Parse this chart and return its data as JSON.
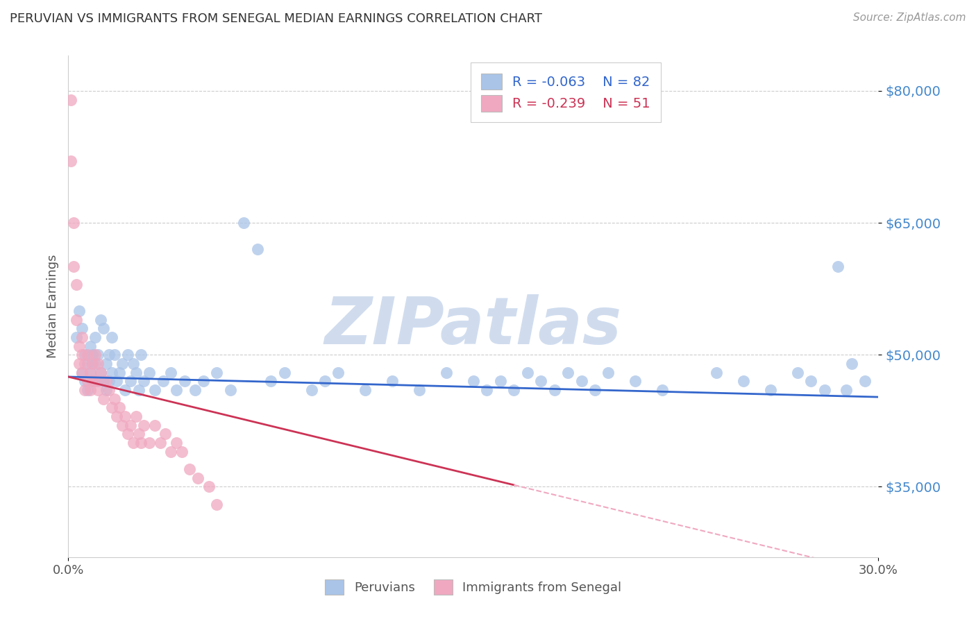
{
  "title": "PERUVIAN VS IMMIGRANTS FROM SENEGAL MEDIAN EARNINGS CORRELATION CHART",
  "source": "Source: ZipAtlas.com",
  "ylabel": "Median Earnings",
  "y_ticks": [
    35000,
    50000,
    65000,
    80000
  ],
  "y_tick_labels": [
    "$35,000",
    "$50,000",
    "$65,000",
    "$80,000"
  ],
  "xlim": [
    0.0,
    0.3
  ],
  "ylim": [
    27000,
    84000
  ],
  "legend_blue_r": "R = -0.063",
  "legend_blue_n": "N = 82",
  "legend_pink_r": "R = -0.239",
  "legend_pink_n": "N = 51",
  "legend_blue_label": "Peruvians",
  "legend_pink_label": "Immigrants from Senegal",
  "blue_color": "#aac4e8",
  "pink_color": "#f0a8c0",
  "blue_line_color": "#3366cc",
  "pink_line_color": "#cc3355",
  "pink_dashed_color": "#f0a8c0",
  "blue_x": [
    0.003,
    0.004,
    0.005,
    0.005,
    0.006,
    0.006,
    0.007,
    0.007,
    0.008,
    0.008,
    0.009,
    0.009,
    0.01,
    0.01,
    0.011,
    0.011,
    0.012,
    0.012,
    0.013,
    0.013,
    0.014,
    0.014,
    0.015,
    0.015,
    0.016,
    0.016,
    0.017,
    0.018,
    0.019,
    0.02,
    0.021,
    0.022,
    0.023,
    0.024,
    0.025,
    0.026,
    0.027,
    0.028,
    0.03,
    0.032,
    0.035,
    0.038,
    0.04,
    0.043,
    0.047,
    0.05,
    0.055,
    0.06,
    0.065,
    0.07,
    0.075,
    0.08,
    0.09,
    0.095,
    0.1,
    0.11,
    0.12,
    0.13,
    0.14,
    0.15,
    0.155,
    0.16,
    0.165,
    0.17,
    0.175,
    0.18,
    0.185,
    0.19,
    0.195,
    0.2,
    0.21,
    0.22,
    0.24,
    0.25,
    0.26,
    0.27,
    0.275,
    0.28,
    0.285,
    0.288,
    0.29,
    0.295
  ],
  "blue_y": [
    52000,
    55000,
    48000,
    53000,
    47000,
    50000,
    49000,
    46000,
    51000,
    48000,
    47000,
    50000,
    49000,
    52000,
    47000,
    50000,
    54000,
    48000,
    53000,
    47000,
    49000,
    46000,
    50000,
    47000,
    52000,
    48000,
    50000,
    47000,
    48000,
    49000,
    46000,
    50000,
    47000,
    49000,
    48000,
    46000,
    50000,
    47000,
    48000,
    46000,
    47000,
    48000,
    46000,
    47000,
    46000,
    47000,
    48000,
    46000,
    65000,
    62000,
    47000,
    48000,
    46000,
    47000,
    48000,
    46000,
    47000,
    46000,
    48000,
    47000,
    46000,
    47000,
    46000,
    48000,
    47000,
    46000,
    48000,
    47000,
    46000,
    48000,
    47000,
    46000,
    48000,
    47000,
    46000,
    48000,
    47000,
    46000,
    60000,
    46000,
    49000,
    47000
  ],
  "pink_x": [
    0.001,
    0.001,
    0.002,
    0.002,
    0.003,
    0.003,
    0.004,
    0.004,
    0.005,
    0.005,
    0.005,
    0.006,
    0.006,
    0.007,
    0.007,
    0.008,
    0.008,
    0.009,
    0.009,
    0.01,
    0.01,
    0.011,
    0.011,
    0.012,
    0.013,
    0.014,
    0.015,
    0.016,
    0.017,
    0.018,
    0.019,
    0.02,
    0.021,
    0.022,
    0.023,
    0.024,
    0.025,
    0.026,
    0.027,
    0.028,
    0.03,
    0.032,
    0.034,
    0.036,
    0.038,
    0.04,
    0.042,
    0.045,
    0.048,
    0.052,
    0.055
  ],
  "pink_y": [
    79000,
    72000,
    65000,
    60000,
    58000,
    54000,
    51000,
    49000,
    50000,
    48000,
    52000,
    49000,
    46000,
    50000,
    47000,
    48000,
    46000,
    49000,
    47000,
    50000,
    47000,
    49000,
    46000,
    48000,
    45000,
    47000,
    46000,
    44000,
    45000,
    43000,
    44000,
    42000,
    43000,
    41000,
    42000,
    40000,
    43000,
    41000,
    40000,
    42000,
    40000,
    42000,
    40000,
    41000,
    39000,
    40000,
    39000,
    37000,
    36000,
    35000,
    33000
  ]
}
